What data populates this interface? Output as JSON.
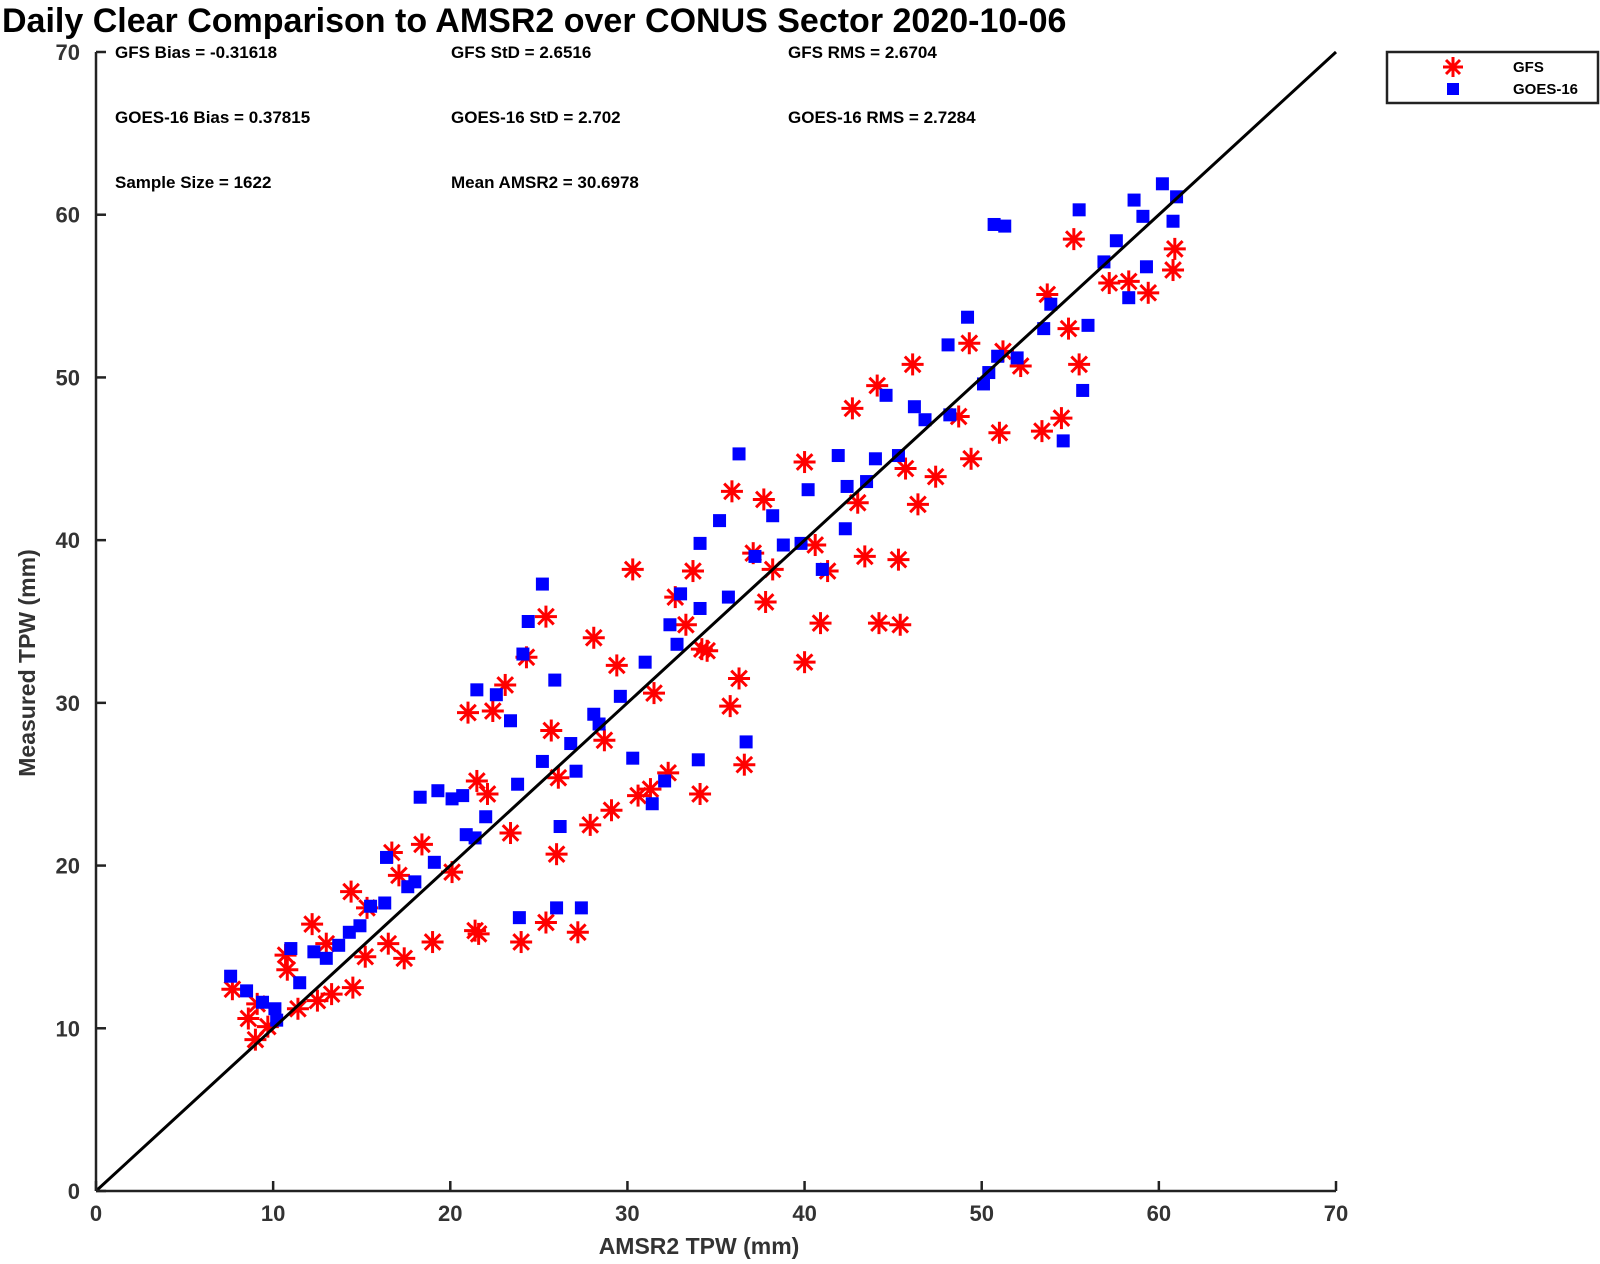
{
  "chart_data": {
    "type": "scatter",
    "title": "Daily Clear Comparison to AMSR2 over CONUS Sector 2020-10-06",
    "xlabel": "AMSR2 TPW (mm)",
    "ylabel": "Measured TPW (mm)",
    "xlim": [
      0,
      70
    ],
    "ylim": [
      0,
      70
    ],
    "xticks": [
      "0",
      "10",
      "20",
      "30",
      "40",
      "50",
      "60",
      "70"
    ],
    "yticks": [
      "0",
      "10",
      "20",
      "30",
      "40",
      "50",
      "60",
      "70"
    ],
    "grid": false,
    "legend_position": "top-right, outside plot",
    "reference_line": {
      "x": [
        0,
        70
      ],
      "y": [
        0,
        70
      ],
      "color": "#000000"
    },
    "stats": [
      [
        "GFS Bias = -0.31618",
        "GFS StD = 2.6516",
        "GFS RMS = 2.6704"
      ],
      [
        "GOES-16 Bias = 0.37815",
        "GOES-16 StD = 2.702",
        "GOES-16 RMS = 2.7284"
      ],
      [
        "Sample Size = 1622",
        "Mean AMSR2 = 30.6978"
      ]
    ],
    "series": [
      {
        "name": "GFS",
        "marker": "asterisk",
        "color": "#ff0000",
        "points": [
          [
            7.7,
            12.4
          ],
          [
            8.6,
            10.6
          ],
          [
            9.0,
            9.3
          ],
          [
            9.7,
            10.1
          ],
          [
            10.8,
            13.6
          ],
          [
            11.4,
            11.2
          ],
          [
            12.5,
            11.7
          ],
          [
            13.3,
            12.1
          ],
          [
            14.5,
            12.5
          ],
          [
            15.2,
            14.4
          ],
          [
            16.5,
            15.2
          ],
          [
            17.4,
            14.3
          ],
          [
            19.0,
            15.3
          ],
          [
            21.4,
            16.0
          ],
          [
            21.6,
            15.8
          ],
          [
            24.0,
            15.3
          ],
          [
            25.4,
            16.5
          ],
          [
            27.2,
            15.9
          ],
          [
            26.0,
            20.7
          ],
          [
            27.9,
            22.5
          ],
          [
            29.1,
            23.4
          ],
          [
            30.6,
            24.3
          ],
          [
            31.3,
            24.7
          ],
          [
            32.3,
            25.7
          ],
          [
            34.1,
            24.4
          ],
          [
            35.8,
            29.8
          ],
          [
            36.6,
            26.2
          ],
          [
            36.3,
            31.5
          ],
          [
            34.5,
            33.2
          ],
          [
            33.3,
            34.8
          ],
          [
            35.9,
            43.0
          ],
          [
            37.7,
            42.5
          ],
          [
            38.2,
            38.2
          ],
          [
            40.0,
            32.5
          ],
          [
            40.9,
            34.9
          ],
          [
            41.3,
            38.1
          ],
          [
            43.4,
            39.0
          ],
          [
            44.2,
            34.9
          ],
          [
            45.4,
            34.8
          ],
          [
            45.3,
            38.8
          ],
          [
            46.4,
            42.2
          ],
          [
            47.4,
            43.9
          ],
          [
            49.4,
            45.0
          ],
          [
            51.0,
            46.6
          ],
          [
            53.4,
            46.7
          ],
          [
            54.5,
            47.5
          ],
          [
            55.5,
            50.8
          ],
          [
            58.3,
            55.9
          ],
          [
            59.4,
            55.2
          ],
          [
            60.8,
            56.6
          ],
          [
            60.9,
            57.9
          ],
          [
            55.2,
            58.5
          ],
          [
            53.7,
            55.1
          ],
          [
            51.2,
            51.6
          ],
          [
            49.3,
            52.1
          ],
          [
            46.1,
            50.8
          ],
          [
            44.1,
            49.5
          ],
          [
            42.7,
            48.1
          ],
          [
            40.0,
            44.8
          ],
          [
            37.1,
            39.2
          ],
          [
            33.7,
            38.1
          ],
          [
            32.7,
            36.5
          ],
          [
            30.3,
            38.2
          ],
          [
            28.1,
            34.0
          ],
          [
            25.4,
            35.3
          ],
          [
            24.3,
            32.8
          ],
          [
            23.1,
            31.1
          ],
          [
            22.4,
            29.5
          ],
          [
            21.0,
            29.4
          ],
          [
            21.5,
            25.2
          ],
          [
            18.4,
            21.3
          ],
          [
            16.7,
            20.8
          ],
          [
            14.4,
            18.4
          ],
          [
            12.2,
            16.4
          ],
          [
            10.7,
            14.5
          ],
          [
            9.1,
            11.5
          ],
          [
            20.1,
            19.6
          ],
          [
            23.4,
            22.0
          ],
          [
            26.1,
            25.4
          ],
          [
            28.7,
            27.7
          ],
          [
            31.5,
            30.6
          ],
          [
            34.2,
            33.3
          ],
          [
            37.8,
            36.2
          ],
          [
            40.6,
            39.7
          ],
          [
            43.0,
            42.3
          ],
          [
            45.7,
            44.4
          ],
          [
            48.7,
            47.6
          ],
          [
            52.2,
            50.7
          ],
          [
            54.9,
            53.0
          ],
          [
            57.2,
            55.8
          ],
          [
            13.0,
            15.2
          ],
          [
            15.3,
            17.4
          ],
          [
            17.1,
            19.4
          ],
          [
            22.1,
            24.4
          ],
          [
            25.7,
            28.3
          ],
          [
            29.4,
            32.3
          ]
        ]
      },
      {
        "name": "GOES-16",
        "marker": "square",
        "color": "#0000ff",
        "points": [
          [
            7.6,
            13.2
          ],
          [
            8.5,
            12.3
          ],
          [
            9.4,
            11.6
          ],
          [
            10.2,
            10.5
          ],
          [
            11.0,
            14.9
          ],
          [
            12.3,
            14.7
          ],
          [
            13.0,
            14.3
          ],
          [
            14.3,
            15.9
          ],
          [
            15.5,
            17.5
          ],
          [
            16.4,
            20.5
          ],
          [
            17.6,
            18.7
          ],
          [
            18.3,
            24.2
          ],
          [
            19.3,
            24.6
          ],
          [
            20.1,
            24.1
          ],
          [
            20.7,
            24.3
          ],
          [
            21.4,
            21.7
          ],
          [
            21.5,
            30.8
          ],
          [
            22.6,
            30.5
          ],
          [
            23.4,
            28.9
          ],
          [
            24.1,
            33.0
          ],
          [
            24.4,
            35.0
          ],
          [
            25.2,
            37.3
          ],
          [
            25.9,
            31.4
          ],
          [
            23.9,
            16.8
          ],
          [
            26.0,
            17.4
          ],
          [
            27.4,
            17.4
          ],
          [
            26.2,
            22.4
          ],
          [
            27.1,
            25.8
          ],
          [
            28.4,
            28.7
          ],
          [
            30.3,
            26.6
          ],
          [
            31.4,
            23.8
          ],
          [
            32.1,
            25.2
          ],
          [
            34.0,
            26.5
          ],
          [
            36.7,
            27.6
          ],
          [
            32.4,
            34.8
          ],
          [
            33.0,
            36.7
          ],
          [
            34.1,
            39.8
          ],
          [
            35.2,
            41.2
          ],
          [
            36.3,
            45.3
          ],
          [
            38.2,
            41.5
          ],
          [
            39.8,
            39.8
          ],
          [
            41.0,
            38.2
          ],
          [
            42.3,
            40.7
          ],
          [
            43.5,
            43.6
          ],
          [
            44.0,
            45.0
          ],
          [
            45.3,
            45.2
          ],
          [
            46.2,
            48.2
          ],
          [
            48.2,
            47.7
          ],
          [
            50.1,
            49.6
          ],
          [
            49.2,
            53.7
          ],
          [
            50.4,
            50.3
          ],
          [
            52.0,
            51.2
          ],
          [
            53.5,
            53.0
          ],
          [
            54.6,
            46.1
          ],
          [
            55.7,
            49.2
          ],
          [
            56.0,
            53.2
          ],
          [
            55.5,
            60.3
          ],
          [
            56.9,
            57.1
          ],
          [
            58.3,
            54.9
          ],
          [
            59.3,
            56.8
          ],
          [
            58.6,
            60.9
          ],
          [
            59.1,
            59.9
          ],
          [
            60.2,
            61.9
          ],
          [
            60.8,
            59.6
          ],
          [
            61.0,
            61.1
          ],
          [
            51.3,
            59.3
          ],
          [
            50.7,
            59.4
          ],
          [
            48.1,
            52.0
          ],
          [
            44.6,
            48.9
          ],
          [
            41.9,
            45.2
          ],
          [
            40.2,
            43.1
          ],
          [
            37.2,
            39.0
          ],
          [
            34.1,
            35.8
          ],
          [
            31.0,
            32.5
          ],
          [
            28.1,
            29.3
          ],
          [
            25.2,
            26.4
          ],
          [
            22.0,
            23.0
          ],
          [
            19.1,
            20.2
          ],
          [
            16.3,
            17.7
          ],
          [
            13.7,
            15.1
          ],
          [
            11.5,
            12.8
          ],
          [
            10.1,
            11.2
          ],
          [
            14.9,
            16.3
          ],
          [
            18.0,
            19.0
          ],
          [
            20.9,
            21.9
          ],
          [
            23.8,
            25.0
          ],
          [
            26.8,
            27.5
          ],
          [
            29.6,
            30.4
          ],
          [
            32.8,
            33.6
          ],
          [
            35.7,
            36.5
          ],
          [
            38.8,
            39.7
          ],
          [
            42.4,
            43.3
          ],
          [
            46.8,
            47.4
          ],
          [
            50.9,
            51.3
          ],
          [
            53.9,
            54.5
          ],
          [
            57.6,
            58.4
          ]
        ]
      }
    ]
  }
}
